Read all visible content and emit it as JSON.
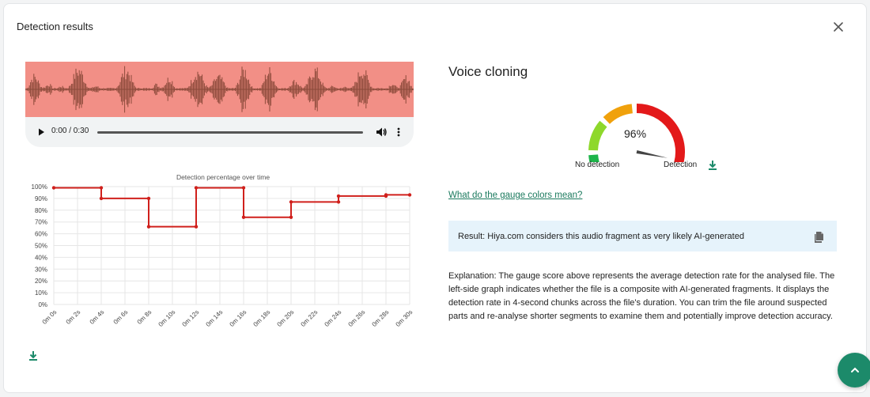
{
  "dialog": {
    "title": "Detection results",
    "close_icon": "close-icon"
  },
  "player": {
    "time": "0:00 / 0:30",
    "waveform_color": "#8b4a3a",
    "waveform_bg": "#f28f86"
  },
  "chart_data": {
    "type": "line",
    "title": "Detection percentage over time",
    "xlabel": "",
    "ylabel": "",
    "x": [
      "0m 0s",
      "0m 2s",
      "0m 4s",
      "0m 6s",
      "0m 8s",
      "0m 10s",
      "0m 12s",
      "0m 14s",
      "0m 16s",
      "0m 18s",
      "0m 20s",
      "0m 22s",
      "0m 24s",
      "0m 26s",
      "0m 28s",
      "0m 30s"
    ],
    "yticks": [
      "0%",
      "10%",
      "20%",
      "30%",
      "40%",
      "50%",
      "60%",
      "70%",
      "80%",
      "90%",
      "100%"
    ],
    "ylim": [
      0,
      100
    ],
    "grid": true,
    "step": true,
    "color": "#d0201c",
    "series": [
      {
        "points": [
          {
            "x": 0,
            "y": 99
          },
          {
            "x": 4,
            "y": 99
          },
          {
            "x": 4,
            "y": 90
          },
          {
            "x": 8,
            "y": 90
          },
          {
            "x": 8,
            "y": 66
          },
          {
            "x": 12,
            "y": 66
          },
          {
            "x": 12,
            "y": 99
          },
          {
            "x": 16,
            "y": 99
          },
          {
            "x": 16,
            "y": 74
          },
          {
            "x": 20,
            "y": 74
          },
          {
            "x": 20,
            "y": 87
          },
          {
            "x": 24,
            "y": 87
          },
          {
            "x": 24,
            "y": 92
          },
          {
            "x": 28,
            "y": 92
          },
          {
            "x": 28,
            "y": 93
          },
          {
            "x": 30,
            "y": 93
          }
        ]
      }
    ]
  },
  "result": {
    "heading": "Voice cloning",
    "gauge_value": "96%",
    "gauge_fraction": 0.96,
    "gauge_colors": [
      "#1db54a",
      "#8ed82b",
      "#f0a10c",
      "#e3191a"
    ],
    "needle_color": "#444444",
    "label_low": "No detection",
    "label_high": "Detection",
    "gauge_link": "What do the gauge colors mean?",
    "result_text": "Result: Hiya.com considers this audio fragment as very likely AI-generated",
    "explanation": "Explanation: The gauge score above represents the average detection rate for the analysed file. The left-side graph indicates whether the file is a composite with AI-generated fragments. It displays the detection rate in 4-second chunks across the file's duration. You can trim the file around suspected parts and re-analyse shorter segments to examine them and potentially improve detection accuracy."
  },
  "icons": {
    "download": "download-icon",
    "copy": "copy-icon",
    "scroll_top": "chevron-up-icon",
    "accent": "#1c8a6a"
  }
}
